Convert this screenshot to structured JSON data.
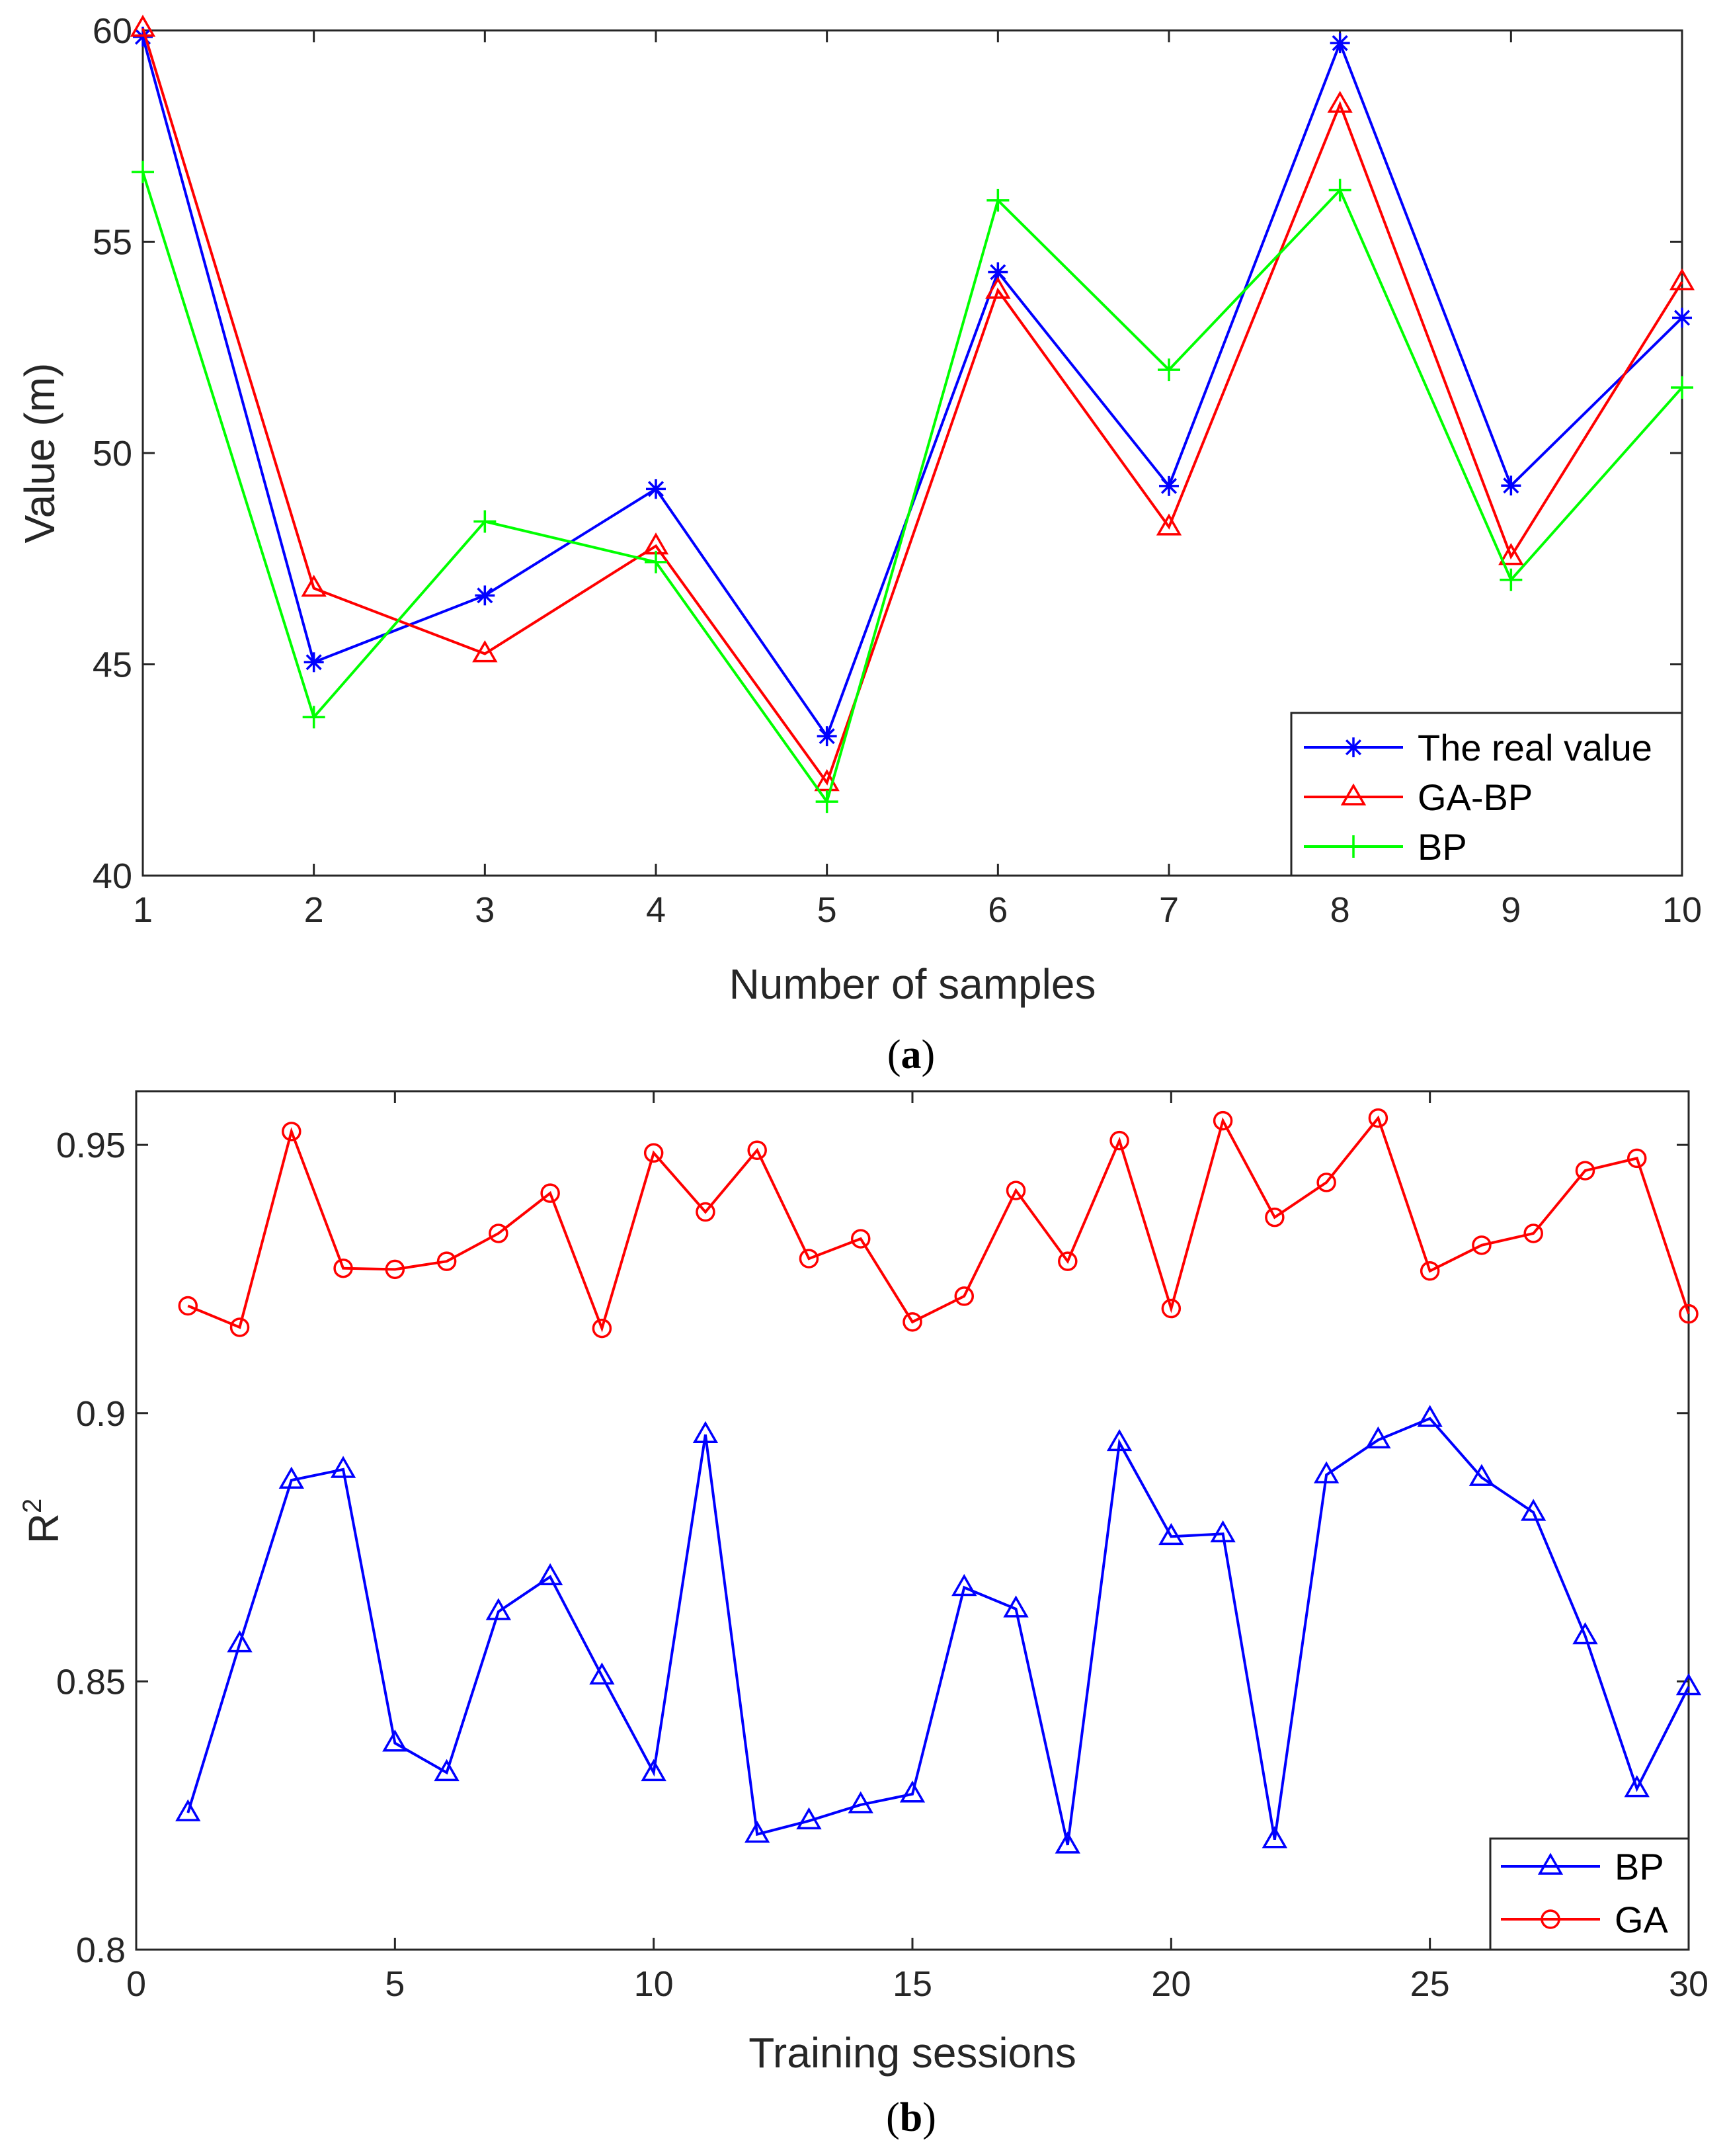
{
  "chart_data": [
    {
      "type": "line",
      "caption_open": "(",
      "caption_letter": "a",
      "caption_close": ")",
      "xlabel": "Number of samples",
      "ylabel": "Value (m)",
      "xlim": [
        1,
        10
      ],
      "ylim": [
        40,
        60
      ],
      "xticks": [
        1,
        2,
        3,
        4,
        5,
        6,
        7,
        8,
        9,
        10
      ],
      "yticks": [
        40,
        45,
        50,
        55,
        60
      ],
      "grid": false,
      "legend_position": "bottom-right",
      "x": [
        1,
        2,
        3,
        4,
        5,
        6,
        7,
        8,
        9,
        10
      ],
      "series": [
        {
          "name": "The real value",
          "color": "#0000FF",
          "marker": "asterisk",
          "values": [
            59.85,
            45.05,
            46.63,
            49.15,
            43.3,
            54.28,
            49.22,
            59.7,
            49.23,
            53.2
          ]
        },
        {
          "name": "GA-BP",
          "color": "#FF0000",
          "marker": "triangle",
          "values": [
            60.05,
            46.8,
            45.25,
            47.8,
            42.2,
            53.85,
            48.25,
            58.25,
            47.55,
            54.05
          ]
        },
        {
          "name": "BP",
          "color": "#00FF00",
          "marker": "plus",
          "values": [
            56.65,
            43.75,
            48.38,
            47.42,
            41.75,
            55.98,
            51.97,
            56.22,
            47.0,
            51.55
          ]
        }
      ]
    },
    {
      "type": "line",
      "caption_open": "(",
      "caption_letter": "b",
      "caption_close": ")",
      "xlabel": "Training sessions",
      "ylabel": "R",
      "ylabel_sup": "2",
      "xlim": [
        0,
        30
      ],
      "ylim": [
        0.8,
        0.96
      ],
      "xticks": [
        0,
        5,
        10,
        15,
        20,
        25,
        30
      ],
      "yticks": [
        0.8,
        0.85,
        0.9,
        0.95
      ],
      "ytick_labels": [
        "0.8",
        "0.85",
        "0.9",
        "0.95"
      ],
      "grid": false,
      "legend_position": "bottom-right",
      "x": [
        1,
        2,
        3,
        4,
        5,
        6,
        7,
        8,
        9,
        10,
        11,
        12,
        13,
        14,
        15,
        16,
        17,
        18,
        19,
        20,
        21,
        22,
        23,
        24,
        25,
        26,
        27,
        28,
        29,
        30
      ],
      "series": [
        {
          "name": "BP",
          "color": "#0000FF",
          "marker": "triangle",
          "values": [
            0.8255,
            0.857,
            0.8875,
            0.8895,
            0.8385,
            0.833,
            0.863,
            0.8695,
            0.851,
            0.833,
            0.896,
            0.8215,
            0.824,
            0.827,
            0.829,
            0.8675,
            0.8635,
            0.8195,
            0.8945,
            0.877,
            0.8775,
            0.8205,
            0.8885,
            0.895,
            0.899,
            0.888,
            0.8815,
            0.8585,
            0.83,
            0.849
          ]
        },
        {
          "name": "GA",
          "color": "#FF0000",
          "marker": "circle",
          "values": [
            0.92,
            0.916,
            0.9525,
            0.927,
            0.9268,
            0.9283,
            0.9335,
            0.941,
            0.9158,
            0.9485,
            0.9375,
            0.949,
            0.9288,
            0.9325,
            0.917,
            0.9218,
            0.9415,
            0.9283,
            0.9508,
            0.9195,
            0.9545,
            0.9365,
            0.943,
            0.955,
            0.9265,
            0.9313,
            0.9335,
            0.9452,
            0.9475,
            0.9185
          ]
        }
      ]
    }
  ]
}
